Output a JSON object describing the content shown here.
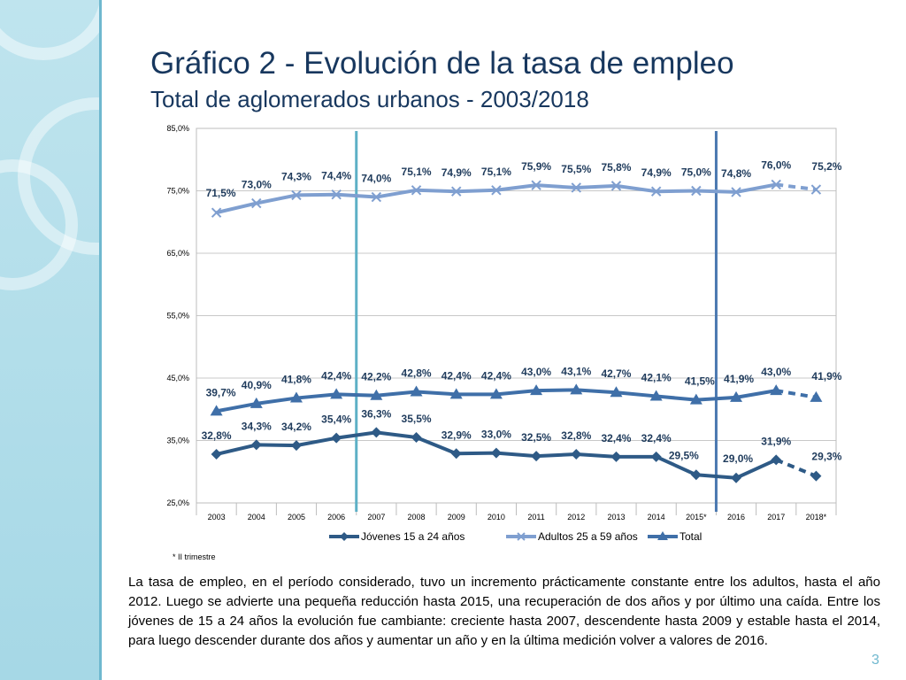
{
  "slide": {
    "title": "Gráfico 2 - Evolución de la tasa de empleo",
    "subtitle": "Total de aglomerados urbanos - 2003/2018",
    "page_number": "3",
    "paragraph": "La tasa de empleo, en el período considerado, tuvo un incremento prácticamente constante entre los adultos, hasta el año 2012. Luego se advierte una pequeña reducción hasta 2015, una recuperación de dos años y por último una caída. Entre los jóvenes de 15 a 24 años la evolución fue cambiante: creciente hasta 2007, descendente hasta 2009 y estable hasta el 2014, para luego descender durante dos años y aumentar un año y en la última medición volver a valores de 2016."
  },
  "colors": {
    "jovenes": "#2e5a86",
    "adultos": "#7f9fd0",
    "total": "#3f6fa8",
    "vline": "#5db0c6",
    "vline2": "#4a78b0",
    "title": "#17375e"
  },
  "chart_data": {
    "type": "line",
    "title": "",
    "xlabel": "",
    "ylabel": "",
    "ylim": [
      25,
      85
    ],
    "y_ticks": [
      "25,0%",
      "35,0%",
      "45,0%",
      "55,0%",
      "65,0%",
      "75,0%",
      "85,0%"
    ],
    "y_tick_values": [
      25,
      35,
      45,
      55,
      65,
      75,
      85
    ],
    "categories": [
      "2003",
      "2004",
      "2005",
      "2006",
      "2007",
      "2008",
      "2009",
      "2010",
      "2011",
      "2012",
      "2013",
      "2014",
      "2015*",
      "2016",
      "2017",
      "2018*"
    ],
    "vertical_markers_after": [
      "2006",
      "2015*"
    ],
    "dashed_last_segment": true,
    "footnote": "* II trimestre",
    "series": [
      {
        "name": "Jóvenes 15 a 24 años",
        "marker": "diamond",
        "values": [
          32.8,
          34.3,
          34.2,
          35.4,
          36.3,
          35.5,
          32.9,
          33.0,
          32.5,
          32.8,
          32.4,
          32.4,
          29.5,
          29.0,
          31.9,
          29.3
        ],
        "labels": [
          "32,8%",
          "34,3%",
          "34,2%",
          "35,4%",
          "36,3%",
          "35,5%",
          "32,9%",
          "33,0%",
          "32,5%",
          "32,8%",
          "32,4%",
          "32,4%",
          "29,5%",
          "29,0%",
          "31,9%",
          "29,3%"
        ]
      },
      {
        "name": "Adultos 25 a 59 años",
        "marker": "x",
        "values": [
          71.5,
          73.0,
          74.3,
          74.4,
          74.0,
          75.1,
          74.9,
          75.1,
          75.9,
          75.5,
          75.8,
          74.9,
          75.0,
          74.8,
          76.0,
          75.2
        ],
        "labels": [
          "71,5%",
          "73,0%",
          "74,3%",
          "74,4%",
          "74,0%",
          "75,1%",
          "74,9%",
          "75,1%",
          "75,9%",
          "75,5%",
          "75,8%",
          "74,9%",
          "75,0%",
          "74,8%",
          "76,0%",
          "75,2%"
        ]
      },
      {
        "name": "Total",
        "marker": "triangle",
        "values": [
          39.7,
          40.9,
          41.8,
          42.4,
          42.2,
          42.8,
          42.4,
          42.4,
          43.0,
          43.1,
          42.7,
          42.1,
          41.5,
          41.9,
          43.0,
          41.9
        ],
        "labels": [
          "39,7%",
          "40,9%",
          "41,8%",
          "42,4%",
          "42,2%",
          "42,8%",
          "42,4%",
          "42,4%",
          "43,0%",
          "43,1%",
          "42,7%",
          "42,1%",
          "41,5%",
          "41,9%",
          "43,0%",
          "41,9%"
        ]
      }
    ]
  }
}
